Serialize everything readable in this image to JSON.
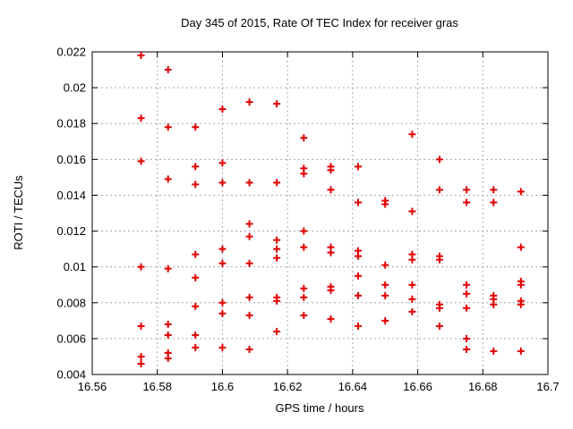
{
  "chart_data": {
    "type": "scatter",
    "title": "Day 345 of 2015, Rate Of TEC Index for receiver gras",
    "xlabel": "GPS time / hours",
    "ylabel": "ROTI / TECUs",
    "xlim": [
      16.56,
      16.7
    ],
    "ylim": [
      0.004,
      0.022
    ],
    "x_ticks": [
      16.56,
      16.58,
      16.6,
      16.62,
      16.64,
      16.66,
      16.68,
      16.7
    ],
    "x_tick_labels": [
      "16.56",
      "16.58",
      "16.6",
      "16.62",
      "16.64",
      "16.66",
      "16.68",
      "16.7"
    ],
    "y_ticks": [
      0.004,
      0.006,
      0.008,
      0.01,
      0.012,
      0.014,
      0.016,
      0.018,
      0.02,
      0.022
    ],
    "y_tick_labels": [
      "0.004",
      "0.006",
      "0.008",
      "0.01",
      "0.012",
      "0.014",
      "0.016",
      "0.018",
      "0.02",
      "0.022"
    ],
    "grid": true,
    "legend": "none",
    "marker": "plus",
    "marker_color": "#e00000",
    "grid_color": "#a8a8a8",
    "frame_color": "#000000",
    "series": [
      {
        "name": "ROTI",
        "columns": [
          {
            "x": 16.575,
            "y": [
              0.0218,
              0.0183,
              0.0159,
              0.01,
              0.0067,
              0.005,
              0.0046
            ]
          },
          {
            "x": 16.5833,
            "y": [
              0.021,
              0.0178,
              0.0149,
              0.0099,
              0.0068,
              0.0062,
              0.0052,
              0.0049
            ]
          },
          {
            "x": 16.5917,
            "y": [
              0.0178,
              0.0156,
              0.0146,
              0.0107,
              0.0094,
              0.0078,
              0.0062,
              0.0055
            ]
          },
          {
            "x": 16.6,
            "y": [
              0.0188,
              0.0158,
              0.0147,
              0.011,
              0.0102,
              0.008,
              0.0074,
              0.0055
            ]
          },
          {
            "x": 16.6083,
            "y": [
              0.0192,
              0.0147,
              0.0124,
              0.0117,
              0.0102,
              0.0083,
              0.0073,
              0.0054
            ]
          },
          {
            "x": 16.6167,
            "y": [
              0.0191,
              0.0147,
              0.0115,
              0.011,
              0.0105,
              0.0083,
              0.0081,
              0.0064
            ]
          },
          {
            "x": 16.625,
            "y": [
              0.0172,
              0.0155,
              0.0152,
              0.012,
              0.0111,
              0.0088,
              0.0083,
              0.0073
            ]
          },
          {
            "x": 16.6333,
            "y": [
              0.0156,
              0.0154,
              0.0143,
              0.0111,
              0.0108,
              0.0089,
              0.0087,
              0.0071
            ]
          },
          {
            "x": 16.6417,
            "y": [
              0.0156,
              0.0136,
              0.0109,
              0.0106,
              0.0095,
              0.0084,
              0.0067
            ]
          },
          {
            "x": 16.65,
            "y": [
              0.0137,
              0.0135,
              0.0101,
              0.009,
              0.0084,
              0.007
            ]
          },
          {
            "x": 16.6583,
            "y": [
              0.0174,
              0.0131,
              0.0107,
              0.0104,
              0.009,
              0.0082,
              0.0075
            ]
          },
          {
            "x": 16.6667,
            "y": [
              0.016,
              0.0143,
              0.0106,
              0.0104,
              0.0079,
              0.0077,
              0.0067
            ]
          },
          {
            "x": 16.675,
            "y": [
              0.0143,
              0.0136,
              0.009,
              0.0085,
              0.0077,
              0.006,
              0.0054
            ]
          },
          {
            "x": 16.6833,
            "y": [
              0.0143,
              0.0136,
              0.0084,
              0.0082,
              0.0079,
              0.0053
            ]
          },
          {
            "x": 16.6917,
            "y": [
              0.0142,
              0.0111,
              0.0092,
              0.009,
              0.0081,
              0.0079,
              0.0053
            ]
          }
        ]
      }
    ]
  }
}
